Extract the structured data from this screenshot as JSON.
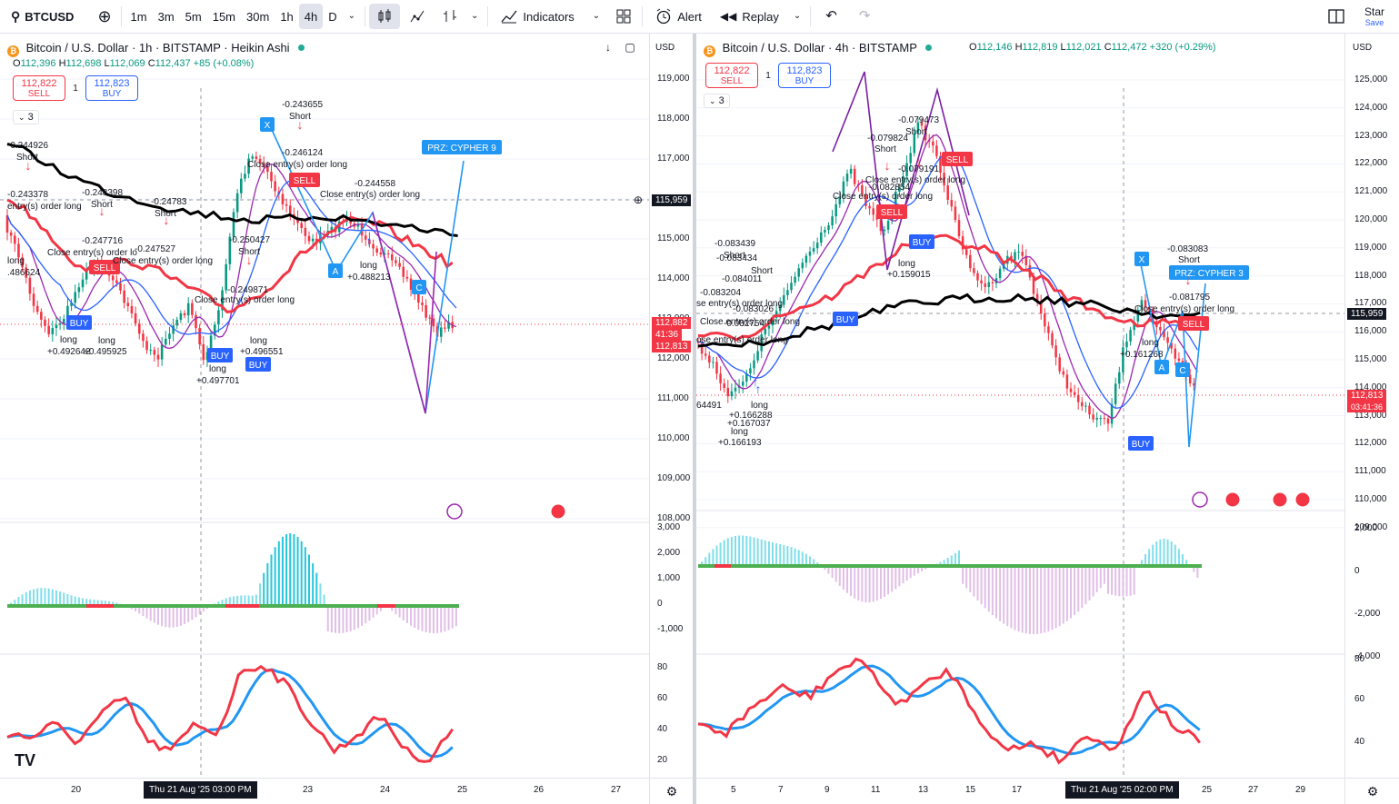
{
  "topbar": {
    "symbol": "BTCUSD",
    "intervals": [
      "1m",
      "3m",
      "5m",
      "15m",
      "30m",
      "1h",
      "4h",
      "D"
    ],
    "active_interval": "4h",
    "indicators_label": "Indicators",
    "alert_label": "Alert",
    "replay_label": "Replay",
    "star_label": "Star",
    "save_label": "Save"
  },
  "left": {
    "title": "Bitcoin / U.S. Dollar · 1h · BITSTAMP · Heikin Ashi",
    "ohlc": {
      "o_label": "O",
      "o": "112,396",
      "h_label": "H",
      "h": "112,698",
      "l_label": "L",
      "l": "112,069",
      "c_label": "C",
      "c": "112,437",
      "chg": "+85 (+0.08%)"
    },
    "sell_price": "112,822",
    "sell_label": "SELL",
    "buy_price": "112,823",
    "buy_label": "BUY",
    "qty": "1",
    "collapse": "3",
    "currency": "USD",
    "price_ticks": [
      "119,000",
      "118,000",
      "117,000",
      "116,000",
      "115,000",
      "114,000",
      "113,000",
      "112,000",
      "111,000",
      "110,000",
      "109,000",
      "108,000"
    ],
    "macd_ticks": [
      "3,000",
      "2,000",
      "1,000",
      "0",
      "-1,000"
    ],
    "rsi_ticks": [
      "80",
      "60",
      "40",
      "20"
    ],
    "time_ticks": [
      "20",
      "23",
      "24",
      "25",
      "26",
      "27"
    ],
    "crosshair_time": "Thu 21 Aug '25   03:00 PM",
    "crosshair_price": "115,959",
    "last_price": "112,882",
    "countdown": "41:36",
    "last_price2": "112,813",
    "prz_label": "PRZ: CYPHER 9",
    "annotations": [
      {
        "text": "-0.244926"
      },
      {
        "text": "Short"
      },
      {
        "text": "-0.243378"
      },
      {
        "text": "-0.248398"
      },
      {
        "text": "Short"
      },
      {
        "text": "-0.24783"
      },
      {
        "text": "Short"
      },
      {
        "text": "entry(s) order long"
      },
      {
        "text": "Close entry(s) order lo"
      },
      {
        "text": "-0.247716"
      },
      {
        "text": "-0.247527"
      },
      {
        "text": "Close entry(s) order long"
      },
      {
        "text": "long"
      },
      {
        "text": "+0.492642"
      },
      {
        "text": "long"
      },
      {
        "text": "+0.495925"
      },
      {
        "text": "-0.250427"
      },
      {
        "text": "Short"
      },
      {
        "text": "-0.249871"
      },
      {
        "text": "Close entry(s) order long"
      },
      {
        "text": "long"
      },
      {
        "text": "+0.496551"
      },
      {
        "text": "long"
      },
      {
        "text": "+0.497701"
      },
      {
        "text": "-0.243655"
      },
      {
        "text": "Short"
      },
      {
        "text": "-0.246124"
      },
      {
        "text": "Close entry(s) order long"
      },
      {
        "text": "-0.244558"
      },
      {
        "text": "Close entry(s) order long"
      },
      {
        "text": "long"
      },
      {
        "text": "+0.488213"
      },
      {
        "text": "long"
      },
      {
        "text": ".486624"
      }
    ]
  },
  "right": {
    "title": "Bitcoin / U.S. Dollar · 4h · BITSTAMP",
    "ohlc": {
      "o_label": "O",
      "o": "112,146",
      "h_label": "H",
      "h": "112,819",
      "l_label": "L",
      "l": "112,021",
      "c_label": "C",
      "c": "112,472",
      "chg": "+320 (+0.29%)"
    },
    "sell_price": "112,822",
    "sell_label": "SELL",
    "buy_price": "112,823",
    "buy_label": "BUY",
    "qty": "1",
    "collapse": "3",
    "currency": "USD",
    "price_ticks": [
      "125,000",
      "124,000",
      "123,000",
      "122,000",
      "121,000",
      "120,000",
      "119,000",
      "118,000",
      "117,000",
      "116,000",
      "115,000",
      "114,000",
      "113,000",
      "112,000",
      "111,000",
      "110,000",
      "109,000"
    ],
    "macd_ticks": [
      "2,000",
      "0",
      "-2,000",
      "-4,000"
    ],
    "rsi_ticks": [
      "80",
      "60",
      "40"
    ],
    "time_ticks": [
      "5",
      "7",
      "9",
      "11",
      "13",
      "15",
      "17",
      "25",
      "27",
      "29"
    ],
    "crosshair_time": "Thu 21 Aug '25   02:00 PM",
    "crosshair_price": "115,959",
    "last_price": "112,813",
    "countdown": "03:41:36",
    "prz_label": "PRZ: CYPHER 3",
    "annotations": [
      {
        "text": "-0.079473"
      },
      {
        "text": "Short"
      },
      {
        "text": "-0.079824"
      },
      {
        "text": "Short"
      },
      {
        "text": "-0.079191"
      },
      {
        "text": "Close entry(s) order long"
      },
      {
        "text": "Close entry(s) order long"
      },
      {
        "text": "-0.082854"
      },
      {
        "text": "long"
      },
      {
        "text": "+0.159015"
      },
      {
        "text": "-0.083439"
      },
      {
        "text": "Short"
      },
      {
        "text": "-0.083434"
      },
      {
        "text": "Short"
      },
      {
        "text": "-0.084011"
      },
      {
        "text": "-0.083204"
      },
      {
        "text": "se entry(s) order long"
      },
      {
        "text": "-0.083026"
      },
      {
        "text": "-0.082754"
      },
      {
        "text": "Close entry(s) order long"
      },
      {
        "text": "ose entry(s) order long"
      },
      {
        "text": "long"
      },
      {
        "text": "+0.166288"
      },
      {
        "text": "+0.167037"
      },
      {
        "text": "long"
      },
      {
        "text": "+0.166193"
      },
      {
        "text": "64491"
      },
      {
        "text": "-0.083083"
      },
      {
        "text": "Short"
      },
      {
        "text": "-0.081795"
      },
      {
        "text": "Close entry(s) order long"
      },
      {
        "text": "long"
      },
      {
        "text": "+0.161268"
      }
    ]
  },
  "colors": {
    "up": "#089981",
    "down": "#f23645",
    "blue": "#2962ff",
    "ema_red": "#f23645",
    "ema_black": "#000000",
    "purple": "#9c27b0",
    "teal": "#26c6da",
    "pattern_blue": "#2196f3",
    "green": "#4caf50",
    "pink": "#e040fb"
  }
}
